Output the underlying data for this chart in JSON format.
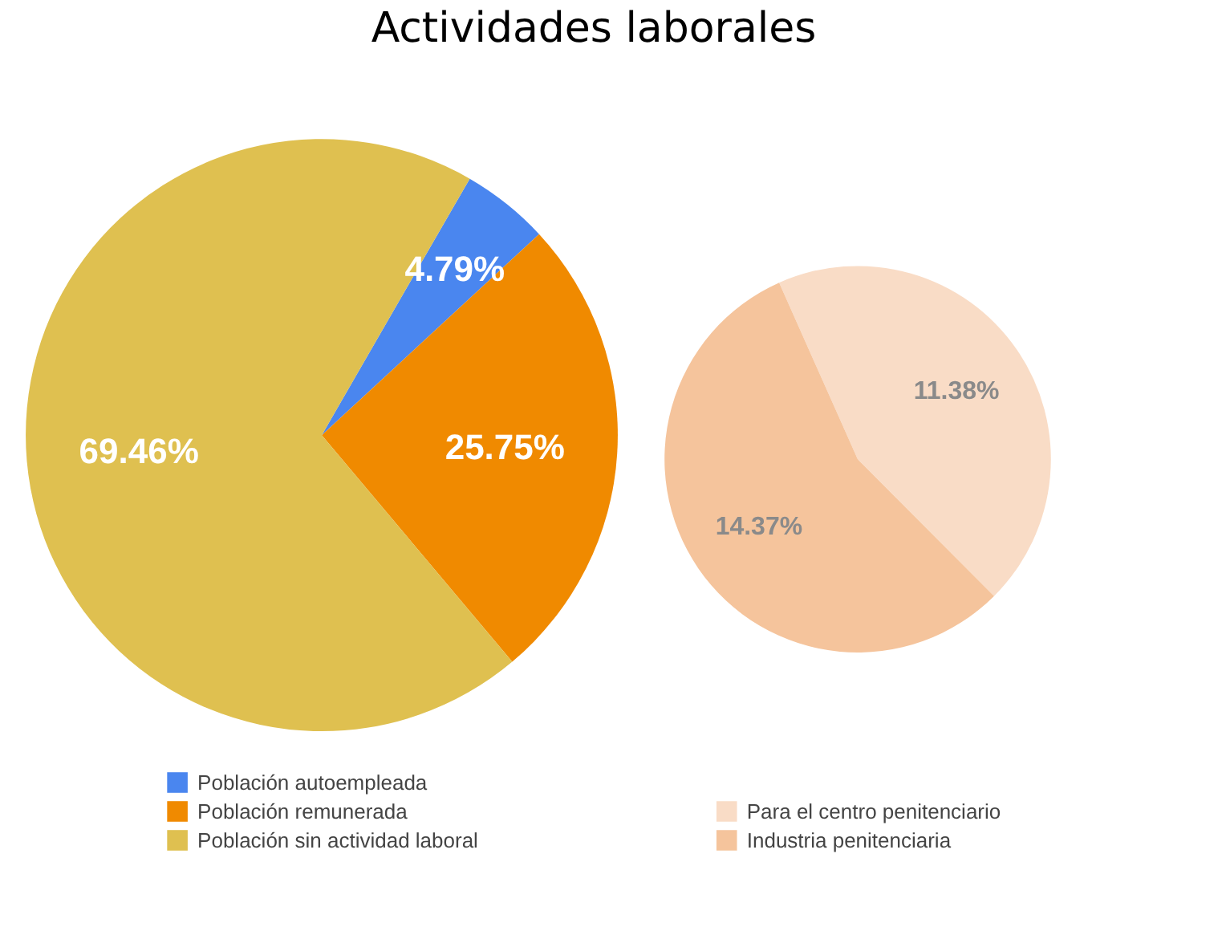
{
  "chart_data": [
    {
      "type": "pie",
      "title": "Actividades laborales",
      "categories": [
        "Población autoempleada",
        "Población remunerada",
        "Población sin actividad laboral"
      ],
      "values": [
        4.79,
        25.75,
        69.46
      ],
      "value_labels": [
        "4.79%",
        "25.75%",
        "69.46%"
      ],
      "colors": [
        "#4a86ef",
        "#f08a00",
        "#dfc050"
      ],
      "legend": "bottom"
    },
    {
      "type": "pie",
      "categories": [
        "Para el centro penitenciario",
        "Industria penitenciaria"
      ],
      "values": [
        11.38,
        14.37
      ],
      "value_labels": [
        "11.38%",
        "14.37%"
      ],
      "colors": [
        "#f9dcc6",
        "#f5c49c"
      ],
      "legend": "bottom"
    }
  ]
}
